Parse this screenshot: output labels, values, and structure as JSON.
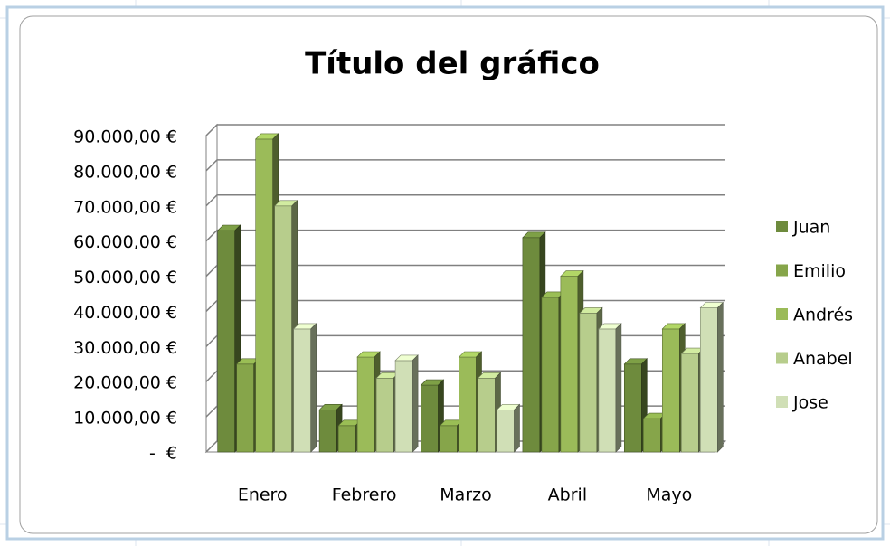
{
  "chart_data": {
    "type": "bar",
    "title": "Título del gráfico",
    "categories": [
      "Enero",
      "Febrero",
      "Marzo",
      "Abril",
      "Mayo"
    ],
    "series": [
      {
        "name": "Juan",
        "color": "#6e8b3d",
        "values": [
          63000,
          12000,
          19000,
          61000,
          25000
        ]
      },
      {
        "name": "Emilio",
        "color": "#86a54a",
        "values": [
          25000,
          7500,
          7500,
          44000,
          9500
        ]
      },
      {
        "name": "Andrés",
        "color": "#9bbb59",
        "values": [
          89000,
          27000,
          27000,
          50000,
          35000
        ]
      },
      {
        "name": "Anabel",
        "color": "#b7cd8c",
        "values": [
          70000,
          21000,
          21000,
          39500,
          28000
        ]
      },
      {
        "name": "Jose",
        "color": "#d0dfb6",
        "values": [
          35000,
          26000,
          12000,
          35000,
          41000
        ]
      }
    ],
    "ylim": [
      0,
      90000
    ],
    "yticks": [
      {
        "value": 0,
        "label": "-  €"
      },
      {
        "value": 10000,
        "label": "10.000,00 €"
      },
      {
        "value": 20000,
        "label": "20.000,00 €"
      },
      {
        "value": 30000,
        "label": "30.000,00 €"
      },
      {
        "value": 40000,
        "label": "40.000,00 €"
      },
      {
        "value": 50000,
        "label": "50.000,00 €"
      },
      {
        "value": 60000,
        "label": "60.000,00 €"
      },
      {
        "value": 70000,
        "label": "70.000,00 €"
      },
      {
        "value": 80000,
        "label": "80.000,00 €"
      },
      {
        "value": 90000,
        "label": "90.000,00 €"
      }
    ],
    "grid": true,
    "legend": "right"
  }
}
